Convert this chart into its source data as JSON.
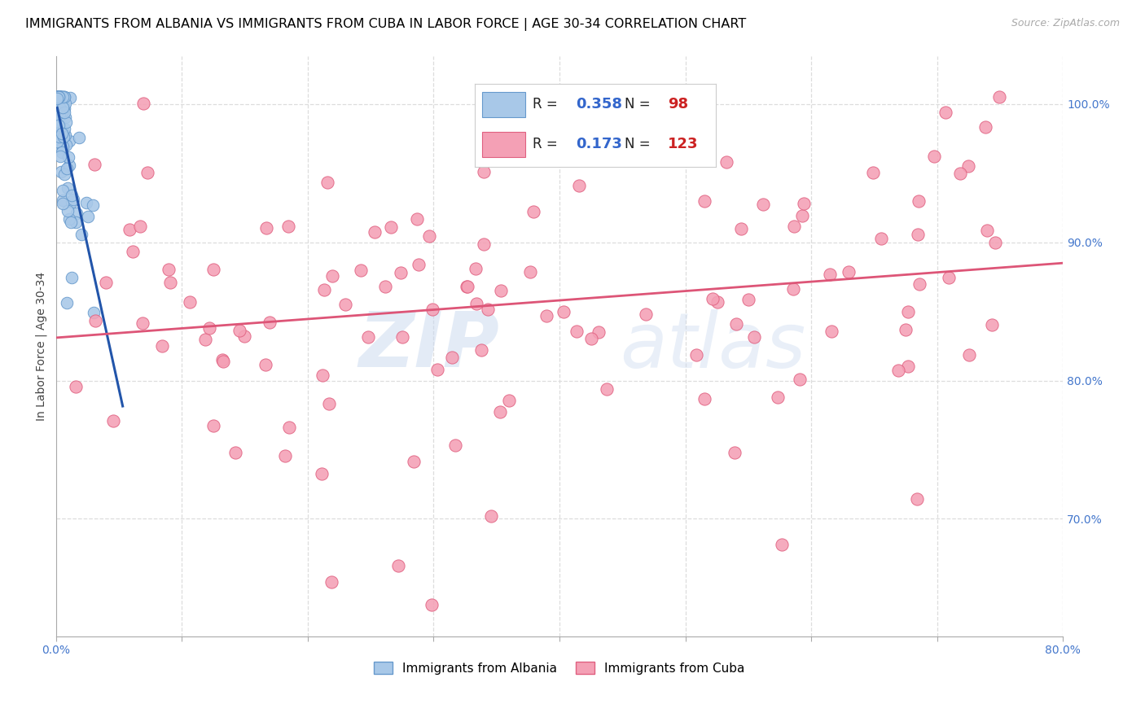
{
  "title": "IMMIGRANTS FROM ALBANIA VS IMMIGRANTS FROM CUBA IN LABOR FORCE | AGE 30-34 CORRELATION CHART",
  "source_text": "Source: ZipAtlas.com",
  "ylabel": "In Labor Force | Age 30-34",
  "xlim": [
    0.0,
    0.8
  ],
  "ylim": [
    0.615,
    1.035
  ],
  "xticks": [
    0.0,
    0.1,
    0.2,
    0.3,
    0.4,
    0.5,
    0.6,
    0.7,
    0.8
  ],
  "xticklabels": [
    "0.0%",
    "",
    "",
    "",
    "",
    "",
    "",
    "",
    "80.0%"
  ],
  "yticks_right": [
    0.7,
    0.8,
    0.9,
    1.0
  ],
  "yticklabels_right": [
    "70.0%",
    "80.0%",
    "90.0%",
    "100.0%"
  ],
  "albania_color": "#a8c8e8",
  "cuba_color": "#f4a0b5",
  "albania_edge": "#6699cc",
  "cuba_edge": "#e06080",
  "trend_albania_color": "#2255aa",
  "trend_cuba_color": "#dd5577",
  "legend_R_albania": "0.358",
  "legend_N_albania": "98",
  "legend_R_cuba": "0.173",
  "legend_N_cuba": "123",
  "legend_label_albania": "Immigrants from Albania",
  "legend_label_cuba": "Immigrants from Cuba",
  "watermark_zip": "ZIP",
  "watermark_atlas": "atlas",
  "title_fontsize": 11.5,
  "source_fontsize": 9,
  "axis_label_fontsize": 10,
  "tick_fontsize": 10,
  "grid_color": "#dddddd",
  "legend_border_color": "#cccccc",
  "tick_color": "#4477cc",
  "R_color": "#3366cc",
  "N_color": "#cc2222"
}
